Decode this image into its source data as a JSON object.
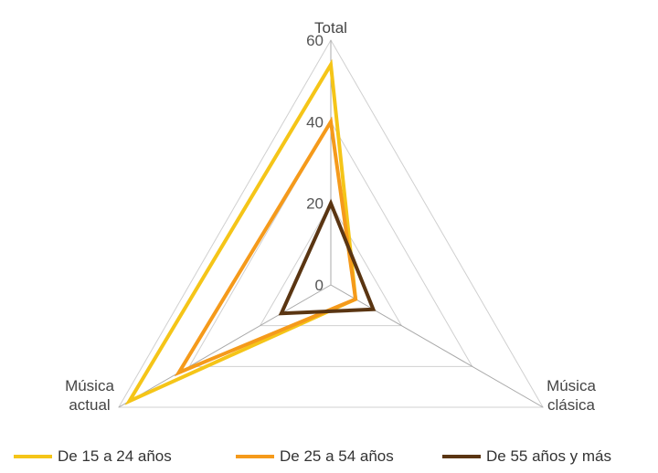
{
  "chart_data": {
    "type": "radar",
    "axes": [
      "Total",
      "Música clásica",
      "Música actual"
    ],
    "axis_labels": [
      [
        "Total"
      ],
      [
        "Música",
        "clásica"
      ],
      [
        "Música",
        "actual"
      ]
    ],
    "rlim": [
      0,
      60
    ],
    "ticks": [
      0,
      20,
      40,
      60
    ],
    "grid": true,
    "legend_position": "bottom",
    "series": [
      {
        "name": "De 15 a 24 años",
        "color": "#f5c518",
        "values": [
          54,
          7,
          57
        ]
      },
      {
        "name": "De 25 a 54 años",
        "color": "#f59a1b",
        "values": [
          40,
          7,
          43
        ]
      },
      {
        "name": "De 55 años y más",
        "color": "#5a3512",
        "values": [
          20,
          12,
          14
        ]
      }
    ]
  }
}
